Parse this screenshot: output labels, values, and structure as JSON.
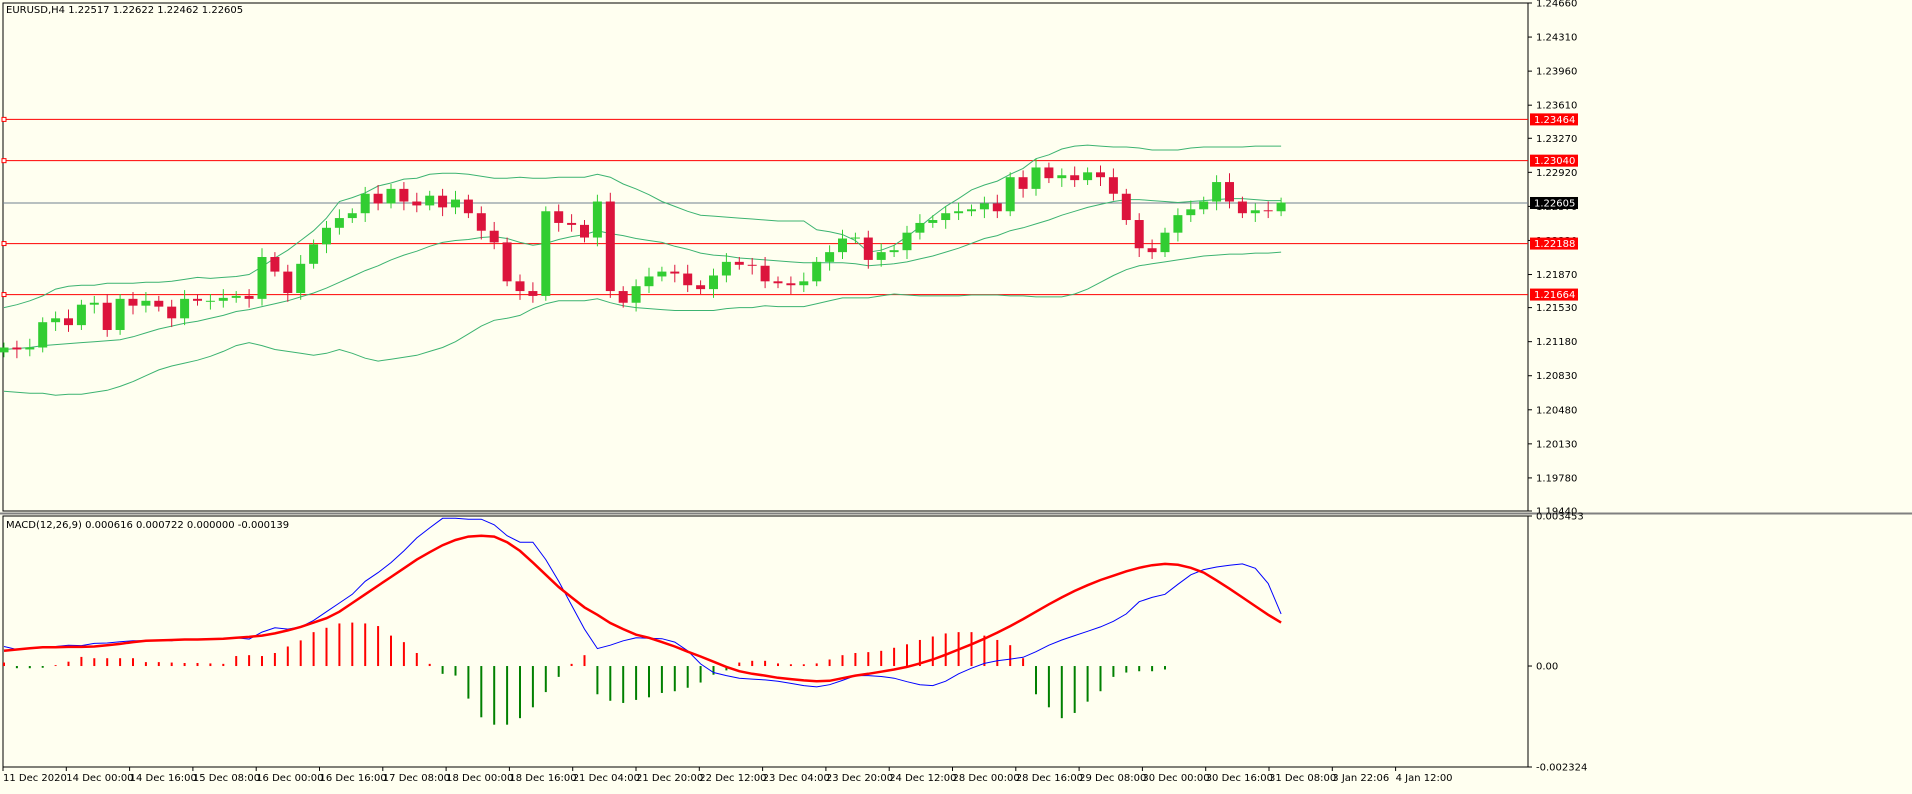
{
  "price_panel": {
    "header": "EURUSD,H4  1.22517 1.22622 1.22462 1.22605"
  },
  "macd_panel": {
    "header": "MACD(12,26,9) 0.000616 0.000722 0.000000 -0.000139"
  },
  "colors": {
    "background": "#fffff0",
    "bull_candle": "#32cd32",
    "bear_candle": "#dc143c",
    "bollinger": "#3cb371",
    "level_line": "#ff0000",
    "macd_line": "#0000ff",
    "signal_line": "#ff0000",
    "hist_positive": "#ff0000",
    "hist_negative": "#008000"
  },
  "chart_data": {
    "type": "candlestick",
    "symbol": "EURUSD",
    "timeframe": "H4",
    "ohlc": {
      "open": "1.22517",
      "high": "1.22622",
      "low": "1.22462",
      "close": "1.22605"
    },
    "y_ticks": [
      "1.24660",
      "1.24310",
      "1.23960",
      "1.23610",
      "1.23270",
      "1.22920",
      "1.22570",
      "1.22220",
      "1.21870",
      "1.21530",
      "1.21180",
      "1.20830",
      "1.20480",
      "1.20130",
      "1.19780",
      "1.19440"
    ],
    "ylim": [
      1.1944,
      1.2466
    ],
    "current_price": "1.22605",
    "horizontal_levels": [
      "1.23464",
      "1.23040",
      "1.22188",
      "1.21664"
    ],
    "x_ticks": [
      "11 Dec 2020",
      "14 Dec 00:00",
      "14 Dec 16:00",
      "15 Dec 08:00",
      "16 Dec 00:00",
      "16 Dec 16:00",
      "17 Dec 08:00",
      "18 Dec 00:00",
      "18 Dec 16:00",
      "21 Dec 04:00",
      "21 Dec 20:00",
      "22 Dec 12:00",
      "23 Dec 04:00",
      "23 Dec 20:00",
      "24 Dec 12:00",
      "28 Dec 00:00",
      "28 Dec 16:00",
      "29 Dec 08:00",
      "30 Dec 00:00",
      "30 Dec 16:00",
      "31 Dec 08:00",
      "3 Jan 22:06",
      "4 Jan 12:00"
    ],
    "closes": [
      1.2112,
      1.211,
      1.2112,
      1.2138,
      1.2142,
      1.2135,
      1.2156,
      1.2158,
      1.213,
      1.2162,
      1.2155,
      1.216,
      1.2154,
      1.2142,
      1.2162,
      1.216,
      1.216,
      1.2163,
      1.2165,
      1.2162,
      1.2205,
      1.219,
      1.2168,
      1.2198,
      1.2218,
      1.2235,
      1.2245,
      1.225,
      1.227,
      1.226,
      1.2275,
      1.2262,
      1.2258,
      1.2268,
      1.2256,
      1.2264,
      1.225,
      1.2232,
      1.222,
      1.218,
      1.217,
      1.2165,
      1.2252,
      1.224,
      1.2238,
      1.2225,
      1.2262,
      1.217,
      1.2158,
      1.2175,
      1.2185,
      1.219,
      1.2188,
      1.2176,
      1.2172,
      1.2186,
      1.22,
      1.2197,
      1.2196,
      1.218,
      1.2178,
      1.2176,
      1.218,
      1.22,
      1.221,
      1.2224,
      1.2225,
      1.2202,
      1.221,
      1.2212,
      1.223,
      1.224,
      1.2243,
      1.225,
      1.2252,
      1.2254,
      1.226,
      1.2252,
      1.2287,
      1.2275,
      1.2297,
      1.2286,
      1.2289,
      1.2284,
      1.2292,
      1.2287,
      1.227,
      1.2243,
      1.2214,
      1.221,
      1.223,
      1.2248,
      1.2254,
      1.2262,
      1.2282,
      1.2262,
      1.225,
      1.2253,
      1.2252,
      1.2261
    ],
    "bollinger": {
      "upper": [
        1.2153,
        1.2156,
        1.216,
        1.2165,
        1.2172,
        1.2175,
        1.2176,
        1.2176,
        1.2178,
        1.2178,
        1.2178,
        1.2179,
        1.2179,
        1.218,
        1.2182,
        1.2184,
        1.2183,
        1.2184,
        1.2185,
        1.2187,
        1.2195,
        1.2204,
        1.2212,
        1.2222,
        1.2232,
        1.2245,
        1.2262,
        1.2266,
        1.2271,
        1.2278,
        1.2281,
        1.2285,
        1.2286,
        1.229,
        1.2291,
        1.2291,
        1.229,
        1.2288,
        1.2286,
        1.2286,
        1.2287,
        1.2286,
        1.2286,
        1.2287,
        1.2287,
        1.2287,
        1.229,
        1.2287,
        1.228,
        1.2275,
        1.2269,
        1.2262,
        1.2257,
        1.2252,
        1.2248,
        1.2247,
        1.2246,
        1.2245,
        1.2244,
        1.2243,
        1.2242,
        1.2242,
        1.2242,
        1.2233,
        1.2231,
        1.2228,
        1.2222,
        1.221,
        1.2212,
        1.2217,
        1.2226,
        1.2236,
        1.2247,
        1.2257,
        1.2265,
        1.2274,
        1.2279,
        1.2283,
        1.229,
        1.2296,
        1.2306,
        1.231,
        1.2316,
        1.2319,
        1.232,
        1.2319,
        1.2318,
        1.2318,
        1.2317,
        1.2315,
        1.2315,
        1.2315,
        1.2317,
        1.2318,
        1.2318,
        1.2318,
        1.2318,
        1.2319,
        1.2319,
        1.2319
      ],
      "middle": [
        1.211,
        1.2111,
        1.2112,
        1.2114,
        1.2115,
        1.2116,
        1.2117,
        1.2118,
        1.2119,
        1.212,
        1.2123,
        1.2127,
        1.2131,
        1.2134,
        1.2137,
        1.2139,
        1.2142,
        1.2145,
        1.2149,
        1.2151,
        1.2154,
        1.2157,
        1.216,
        1.2164,
        1.2168,
        1.2173,
        1.2179,
        1.2185,
        1.2191,
        1.2196,
        1.2202,
        1.2207,
        1.2211,
        1.2216,
        1.222,
        1.2222,
        1.2223,
        1.2225,
        1.2226,
        1.2224,
        1.222,
        1.2217,
        1.2219,
        1.2223,
        1.2226,
        1.2228,
        1.2232,
        1.2229,
        1.2227,
        1.2224,
        1.2222,
        1.222,
        1.2216,
        1.2213,
        1.2209,
        1.2207,
        1.2206,
        1.2204,
        1.2203,
        1.2202,
        1.2201,
        1.22,
        1.2199,
        1.2199,
        1.2199,
        1.2199,
        1.2198,
        1.2196,
        1.2197,
        1.2198,
        1.22,
        1.2203,
        1.2206,
        1.221,
        1.2214,
        1.2219,
        1.2224,
        1.2227,
        1.2232,
        1.2235,
        1.2239,
        1.2243,
        1.2248,
        1.2252,
        1.2256,
        1.2259,
        1.2262,
        1.2264,
        1.2264,
        1.2263,
        1.2262,
        1.2261,
        1.2262,
        1.2263,
        1.2264,
        1.2265,
        1.2265,
        1.2264,
        1.2263,
        1.2263
      ],
      "lower": [
        1.2067,
        1.2066,
        1.2065,
        1.2065,
        1.2063,
        1.2064,
        1.2064,
        1.2066,
        1.2068,
        1.2072,
        1.2077,
        1.2083,
        1.2089,
        1.2093,
        1.2096,
        1.2099,
        1.2103,
        1.2108,
        1.2114,
        1.2117,
        1.2114,
        1.211,
        1.2108,
        1.2106,
        1.2104,
        1.2106,
        1.211,
        1.2106,
        1.2101,
        1.2098,
        1.21,
        1.2102,
        1.2104,
        1.2108,
        1.2112,
        1.2118,
        1.2126,
        1.2134,
        1.214,
        1.2142,
        1.2145,
        1.2152,
        1.2157,
        1.216,
        1.216,
        1.216,
        1.2162,
        1.2158,
        1.2155,
        1.2153,
        1.2152,
        1.2151,
        1.215,
        1.215,
        1.215,
        1.215,
        1.2152,
        1.2153,
        1.2153,
        1.2155,
        1.2154,
        1.2154,
        1.2154,
        1.2157,
        1.216,
        1.2163,
        1.2163,
        1.2163,
        1.2165,
        1.2167,
        1.2166,
        1.2165,
        1.2165,
        1.2165,
        1.2165,
        1.2166,
        1.2166,
        1.2166,
        1.2165,
        1.2165,
        1.2164,
        1.2164,
        1.2164,
        1.2167,
        1.2172,
        1.2179,
        1.2186,
        1.2192,
        1.2196,
        1.2198,
        1.22,
        1.2202,
        1.2204,
        1.2206,
        1.2207,
        1.2208,
        1.2208,
        1.2209,
        1.2209,
        1.221
      ]
    },
    "macd": {
      "y_ticks": [
        "0.003453",
        "0.00",
        "-0.002324"
      ],
      "ylim": [
        -0.002324,
        0.003453
      ],
      "macd_line": [
        0.00045,
        0.00038,
        0.0004,
        0.00042,
        0.00045,
        0.00048,
        0.00047,
        0.00052,
        0.00053,
        0.00056,
        0.00058,
        0.00058,
        0.0006,
        0.00058,
        0.00062,
        0.00062,
        0.00063,
        0.00062,
        0.00065,
        0.00062,
        0.00078,
        0.00088,
        0.00085,
        0.0009,
        0.00105,
        0.00125,
        0.00145,
        0.00165,
        0.00195,
        0.00215,
        0.00238,
        0.00265,
        0.00295,
        0.00318,
        0.0034,
        0.0034,
        0.00338,
        0.00338,
        0.00325,
        0.003,
        0.00285,
        0.00285,
        0.00245,
        0.00195,
        0.0014,
        0.00085,
        0.0004,
        0.00048,
        0.00058,
        0.00065,
        0.00064,
        0.00063,
        0.00055,
        0.00035,
        5e-05,
        -0.00015,
        -0.00022,
        -0.00028,
        -0.0003,
        -0.00032,
        -0.00035,
        -0.0004,
        -0.00045,
        -0.00048,
        -0.00043,
        -0.00033,
        -0.00022,
        -0.00022,
        -0.00024,
        -0.00028,
        -0.00036,
        -0.00043,
        -0.00045,
        -0.00035,
        -0.00018,
        -5e-05,
        6e-05,
        0.00012,
        0.00016,
        0.0002,
        0.00033,
        0.00048,
        0.0006,
        0.0007,
        0.0008,
        0.0009,
        0.00103,
        0.0012,
        0.00148,
        0.00158,
        0.00165,
        0.00188,
        0.0021,
        0.00222,
        0.00228,
        0.00232,
        0.00235,
        0.00225,
        0.0019,
        0.0012
      ],
      "signal_line": [
        0.00035,
        0.00038,
        0.00041,
        0.00043,
        0.00043,
        0.00044,
        0.00044,
        0.00045,
        0.00048,
        0.00051,
        0.00055,
        0.00058,
        0.00059,
        0.0006,
        0.00061,
        0.00061,
        0.00062,
        0.00063,
        0.00065,
        0.00067,
        0.0007,
        0.00075,
        0.00082,
        0.0009,
        0.001,
        0.0011,
        0.00125,
        0.00145,
        0.00165,
        0.00185,
        0.00205,
        0.00225,
        0.00245,
        0.00262,
        0.00278,
        0.0029,
        0.00298,
        0.003,
        0.00298,
        0.00285,
        0.00265,
        0.00238,
        0.0021,
        0.00182,
        0.00158,
        0.00135,
        0.00118,
        0.00099,
        0.00085,
        0.00072,
        0.00065,
        0.00055,
        0.00045,
        0.00033,
        0.00022,
        0.0001,
        -2e-05,
        -0.00012,
        -0.00018,
        -0.00022,
        -0.00027,
        -0.0003,
        -0.00033,
        -0.00035,
        -0.00034,
        -0.00028,
        -0.00022,
        -0.00018,
        -0.00013,
        -8e-05,
        -2e-05,
        6e-05,
        0.00015,
        0.00026,
        0.00038,
        0.0005,
        0.00063,
        0.00077,
        0.00092,
        0.00108,
        0.00125,
        0.00142,
        0.00158,
        0.00173,
        0.00186,
        0.00198,
        0.00208,
        0.00218,
        0.00226,
        0.00232,
        0.00235,
        0.00233,
        0.00226,
        0.00215,
        0.00197,
        0.00178,
        0.00158,
        0.00138,
        0.00118,
        0.001
      ],
      "histogram": [
        8e-05,
        -5e-05,
        -5e-05,
        -4e-05,
        2e-05,
        0.0001,
        0.00021,
        0.00018,
        0.00018,
        0.00018,
        0.00018,
        9e-05,
        9e-05,
        8e-05,
        7e-05,
        7e-05,
        6e-05,
        5e-05,
        0.00023,
        0.00025,
        0.00023,
        0.0003,
        0.00045,
        0.00059,
        0.00078,
        0.00088,
        0.00098,
        0.001,
        0.00098,
        0.00092,
        0.0007,
        0.00055,
        0.0003,
        5e-05,
        -0.00018,
        -0.00022,
        -0.00075,
        -0.00118,
        -0.00135,
        -0.00135,
        -0.0012,
        -0.00095,
        -0.0006,
        -0.00025,
        5e-05,
        0.00025,
        -0.00065,
        -0.0008,
        -0.00085,
        -0.00078,
        -0.00072,
        -0.00062,
        -0.00058,
        -0.0005,
        -0.00038,
        -0.0002,
        -0.0001,
        8e-05,
        0.00012,
        0.00012,
        6e-05,
        4e-05,
        4e-05,
        6e-05,
        0.00015,
        0.00025,
        0.0003,
        0.00032,
        0.00035,
        0.00042,
        0.0005,
        0.0006,
        0.00068,
        0.00075,
        0.00078,
        0.00078,
        0.0007,
        0.0006,
        0.00048,
        0.00018,
        -0.00065,
        -0.00095,
        -0.0012,
        -0.00108,
        -0.00082,
        -0.00058,
        -0.00025,
        -0.00015,
        -0.00012,
        -0.00012,
        -8e-05
      ]
    }
  }
}
